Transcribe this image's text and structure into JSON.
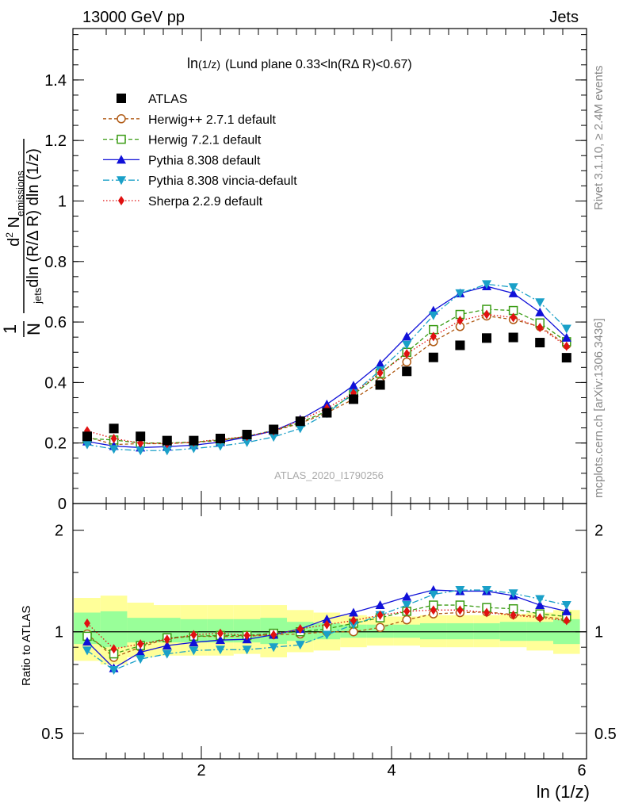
{
  "header": {
    "left": "13000 GeV pp",
    "right": "Jets"
  },
  "plot_title": {
    "main": "ln",
    "sub": "(1/z)",
    "rest": "(Lund plane 0.33<ln(RΔ R)<0.67)"
  },
  "ylabel": {
    "frac_top": "1",
    "frac_bottom": "N",
    "frac_bottom_sub": "jets",
    "frac_bottom_rest": "dln (R/Δ R) dln (1/z)",
    "d2": "d",
    "d2_sup": "2",
    "n": " N",
    "n_sub": "emissions",
    "full": "d² N_emissions / (N_jets dln (R/Δ R) dln (1/z))"
  },
  "ratio_ylabel": "Ratio to ATLAS",
  "xlabel": "ln (1/z)",
  "side_right_top": "Rivet 3.1.10, ≥ 2.4M events",
  "side_right_bottom": "mcplots.cern.ch [arXiv:1306.3436]",
  "watermark": "ATLAS_2020_I1790256",
  "chart_data": {
    "type": "scatter",
    "title": "ln(1/z) (Lund plane 0.33<ln(RΔ R)<0.67)",
    "xlabel": "ln (1/z)",
    "ylabel": "d² N_emissions / (N_jets dln (R/Δ R) dln (1/z))",
    "xlim": [
      0.65,
      6.05
    ],
    "ylim": [
      0,
      1.57
    ],
    "x_ticks": [
      "2",
      "4",
      "6"
    ],
    "y_ticks": [
      "0",
      "0.2",
      "0.4",
      "0.6",
      "0.8",
      "1",
      "1.2",
      "1.4"
    ],
    "x": [
      0.8,
      1.08,
      1.36,
      1.64,
      1.92,
      2.2,
      2.48,
      2.76,
      3.04,
      3.32,
      3.6,
      3.88,
      4.16,
      4.44,
      4.72,
      5.0,
      5.28,
      5.56,
      5.84
    ],
    "legend_position": "top-left",
    "series": [
      {
        "name": "ATLAS",
        "color": "#000000",
        "marker": "square",
        "values": [
          0.222,
          0.248,
          0.222,
          0.208,
          0.208,
          0.215,
          0.228,
          0.245,
          0.272,
          0.3,
          0.345,
          0.392,
          0.437,
          0.483,
          0.523,
          0.547,
          0.549,
          0.532,
          0.482
        ]
      },
      {
        "name": "Herwig++ 2.7.1 default",
        "color": "#b05a14",
        "marker": "circle-open",
        "dash": "4,3",
        "values": [
          0.22,
          0.195,
          0.198,
          0.198,
          0.202,
          0.208,
          0.222,
          0.24,
          0.265,
          0.3,
          0.345,
          0.402,
          0.468,
          0.535,
          0.585,
          0.62,
          0.608,
          0.585,
          0.525
        ]
      },
      {
        "name": "Herwig 7.2.1 default",
        "color": "#3a9c14",
        "marker": "square-open",
        "dash": "5,3",
        "values": [
          0.215,
          0.21,
          0.2,
          0.2,
          0.203,
          0.21,
          0.222,
          0.242,
          0.268,
          0.305,
          0.36,
          0.43,
          0.5,
          0.575,
          0.625,
          0.642,
          0.638,
          0.597,
          0.535
        ]
      },
      {
        "name": "Pythia 8.308 default",
        "color": "#1010d8",
        "marker": "triangle-up",
        "dash": "",
        "values": [
          0.205,
          0.19,
          0.185,
          0.188,
          0.193,
          0.203,
          0.22,
          0.24,
          0.278,
          0.328,
          0.39,
          0.462,
          0.552,
          0.638,
          0.695,
          0.718,
          0.695,
          0.632,
          0.548
        ]
      },
      {
        "name": "Pythia 8.308 vincia-default",
        "color": "#1aa0c8",
        "marker": "triangle-down",
        "dash": "8,3,2,3",
        "values": [
          0.195,
          0.18,
          0.175,
          0.175,
          0.182,
          0.19,
          0.202,
          0.22,
          0.248,
          0.298,
          0.365,
          0.44,
          0.525,
          0.622,
          0.695,
          0.725,
          0.715,
          0.665,
          0.578
        ]
      },
      {
        "name": "Sherpa 2.2.9 default",
        "color": "#e01010",
        "marker": "diamond",
        "dash": "1.5,2.5",
        "values": [
          0.24,
          0.215,
          0.2,
          0.198,
          0.203,
          0.212,
          0.222,
          0.24,
          0.275,
          0.315,
          0.365,
          0.432,
          0.495,
          0.552,
          0.605,
          0.625,
          0.615,
          0.582,
          0.52
        ]
      }
    ],
    "ratio": {
      "ylabel": "Ratio to ATLAS",
      "scale": "log",
      "ylim": [
        0.42,
        2.4
      ],
      "y_ticks": [
        "0.5",
        "1",
        "2"
      ],
      "band_edges": [
        0.66,
        0.94,
        1.22,
        1.5,
        1.78,
        2.06,
        2.34,
        2.62,
        2.9,
        3.18,
        3.46,
        3.74,
        4.02,
        4.3,
        4.58,
        4.86,
        5.14,
        5.42,
        5.7,
        5.98
      ],
      "band_yellow": [
        [
          0.82,
          1.26
        ],
        [
          0.8,
          1.28
        ],
        [
          0.84,
          1.22
        ],
        [
          0.85,
          1.2
        ],
        [
          0.85,
          1.2
        ],
        [
          0.85,
          1.2
        ],
        [
          0.86,
          1.2
        ],
        [
          0.84,
          1.2
        ],
        [
          0.87,
          1.16
        ],
        [
          0.88,
          1.14
        ],
        [
          0.9,
          1.12
        ],
        [
          0.91,
          1.11
        ],
        [
          0.91,
          1.11
        ],
        [
          0.9,
          1.12
        ],
        [
          0.9,
          1.12
        ],
        [
          0.9,
          1.12
        ],
        [
          0.9,
          1.13
        ],
        [
          0.88,
          1.14
        ],
        [
          0.86,
          1.16
        ]
      ],
      "band_green": [
        [
          0.92,
          1.14
        ],
        [
          0.9,
          1.15
        ],
        [
          0.93,
          1.1
        ],
        [
          0.93,
          1.1
        ],
        [
          0.93,
          1.09
        ],
        [
          0.93,
          1.09
        ],
        [
          0.93,
          1.09
        ],
        [
          0.92,
          1.1
        ],
        [
          0.94,
          1.07
        ],
        [
          0.95,
          1.06
        ],
        [
          0.96,
          1.05
        ],
        [
          0.96,
          1.05
        ],
        [
          0.96,
          1.05
        ],
        [
          0.95,
          1.06
        ],
        [
          0.95,
          1.06
        ],
        [
          0.95,
          1.06
        ],
        [
          0.94,
          1.07
        ],
        [
          0.94,
          1.07
        ],
        [
          0.92,
          1.09
        ]
      ],
      "series": [
        {
          "name": "Herwig++ 2.7.1 default",
          "values": [
            0.985,
            0.84,
            0.9,
            0.955,
            0.97,
            0.968,
            0.97,
            0.98,
            0.985,
            1.0,
            1.0,
            1.03,
            1.085,
            1.13,
            1.14,
            1.145,
            1.125,
            1.11,
            1.09
          ]
        },
        {
          "name": "Herwig 7.2.1 default",
          "values": [
            0.97,
            0.86,
            0.91,
            0.96,
            0.97,
            0.975,
            0.975,
            0.99,
            1.0,
            1.02,
            1.06,
            1.1,
            1.15,
            1.2,
            1.2,
            1.18,
            1.17,
            1.13,
            1.11
          ]
        },
        {
          "name": "Pythia 8.308 default",
          "values": [
            0.935,
            0.78,
            0.87,
            0.91,
            0.93,
            0.945,
            0.95,
            0.98,
            1.02,
            1.09,
            1.14,
            1.2,
            1.27,
            1.33,
            1.32,
            1.32,
            1.28,
            1.2,
            1.15
          ]
        },
        {
          "name": "Pythia 8.308 vincia-default",
          "values": [
            0.88,
            0.77,
            0.83,
            0.86,
            0.88,
            0.885,
            0.885,
            0.9,
            0.915,
            0.98,
            1.05,
            1.12,
            1.2,
            1.29,
            1.33,
            1.33,
            1.3,
            1.25,
            1.2
          ]
        },
        {
          "name": "Sherpa 2.2.9 default",
          "values": [
            1.06,
            0.89,
            0.92,
            0.95,
            0.98,
            0.99,
            0.975,
            0.98,
            1.02,
            1.05,
            1.08,
            1.12,
            1.15,
            1.16,
            1.16,
            1.14,
            1.12,
            1.1,
            1.08
          ]
        }
      ]
    }
  }
}
